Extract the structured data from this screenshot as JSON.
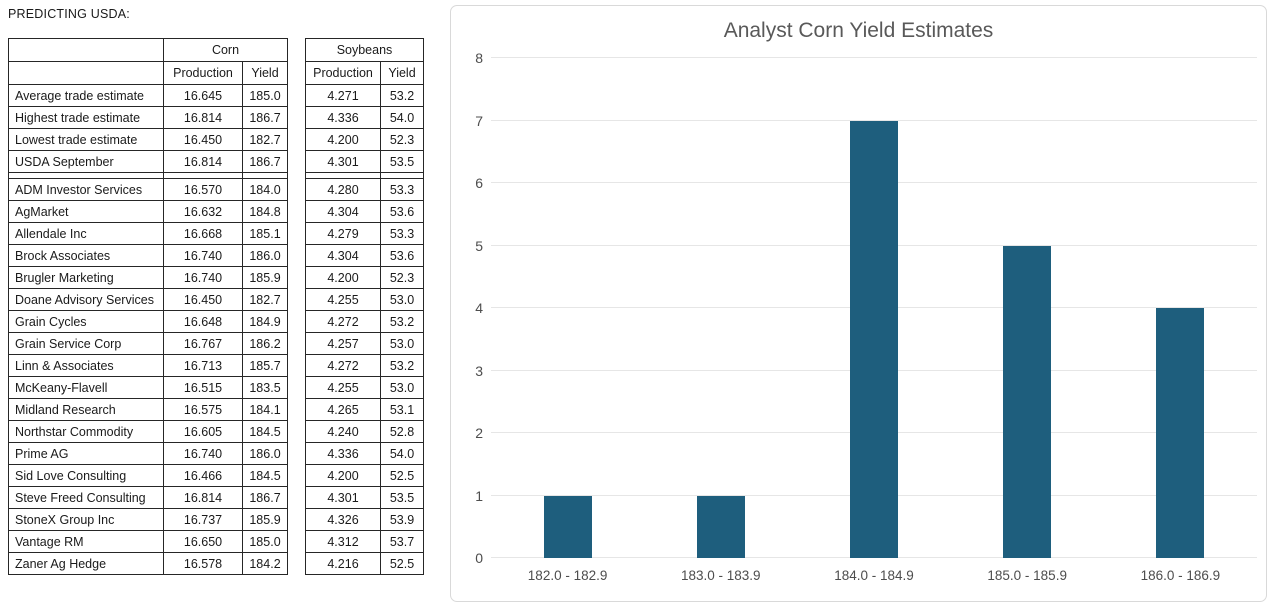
{
  "page_title": "PREDICTING USDA:",
  "table": {
    "group_headers": {
      "corn": "Corn",
      "soybeans": "Soybeans"
    },
    "sub_headers": {
      "production": "Production",
      "yield": "Yield"
    },
    "summary_rows": [
      {
        "name": "Average trade estimate",
        "corn_production": "16.645",
        "corn_yield": "185.0",
        "soy_production": "4.271",
        "soy_yield": "53.2"
      },
      {
        "name": "Highest trade estimate",
        "corn_production": "16.814",
        "corn_yield": "186.7",
        "soy_production": "4.336",
        "soy_yield": "54.0"
      },
      {
        "name": "Lowest trade estimate",
        "corn_production": "16.450",
        "corn_yield": "182.7",
        "soy_production": "4.200",
        "soy_yield": "52.3"
      },
      {
        "name": "USDA September",
        "corn_production": "16.814",
        "corn_yield": "186.7",
        "soy_production": "4.301",
        "soy_yield": "53.5"
      }
    ],
    "analyst_rows": [
      {
        "name": "ADM Investor Services",
        "corn_production": "16.570",
        "corn_yield": "184.0",
        "soy_production": "4.280",
        "soy_yield": "53.3"
      },
      {
        "name": "AgMarket",
        "corn_production": "16.632",
        "corn_yield": "184.8",
        "soy_production": "4.304",
        "soy_yield": "53.6"
      },
      {
        "name": "Allendale Inc",
        "corn_production": "16.668",
        "corn_yield": "185.1",
        "soy_production": "4.279",
        "soy_yield": "53.3"
      },
      {
        "name": "Brock Associates",
        "corn_production": "16.740",
        "corn_yield": "186.0",
        "soy_production": "4.304",
        "soy_yield": "53.6"
      },
      {
        "name": "Brugler Marketing",
        "corn_production": "16.740",
        "corn_yield": "185.9",
        "soy_production": "4.200",
        "soy_yield": "52.3"
      },
      {
        "name": "Doane Advisory Services",
        "corn_production": "16.450",
        "corn_yield": "182.7",
        "soy_production": "4.255",
        "soy_yield": "53.0"
      },
      {
        "name": "Grain Cycles",
        "corn_production": "16.648",
        "corn_yield": "184.9",
        "soy_production": "4.272",
        "soy_yield": "53.2"
      },
      {
        "name": "Grain Service Corp",
        "corn_production": "16.767",
        "corn_yield": "186.2",
        "soy_production": "4.257",
        "soy_yield": "53.0"
      },
      {
        "name": "Linn & Associates",
        "corn_production": "16.713",
        "corn_yield": "185.7",
        "soy_production": "4.272",
        "soy_yield": "53.2"
      },
      {
        "name": "McKeany-Flavell",
        "corn_production": "16.515",
        "corn_yield": "183.5",
        "soy_production": "4.255",
        "soy_yield": "53.0"
      },
      {
        "name": "Midland Research",
        "corn_production": "16.575",
        "corn_yield": "184.1",
        "soy_production": "4.265",
        "soy_yield": "53.1"
      },
      {
        "name": "Northstar Commodity",
        "corn_production": "16.605",
        "corn_yield": "184.5",
        "soy_production": "4.240",
        "soy_yield": "52.8"
      },
      {
        "name": "Prime AG",
        "corn_production": "16.740",
        "corn_yield": "186.0",
        "soy_production": "4.336",
        "soy_yield": "54.0"
      },
      {
        "name": "Sid Love Consulting",
        "corn_production": "16.466",
        "corn_yield": "184.5",
        "soy_production": "4.200",
        "soy_yield": "52.5"
      },
      {
        "name": "Steve Freed Consulting",
        "corn_production": "16.814",
        "corn_yield": "186.7",
        "soy_production": "4.301",
        "soy_yield": "53.5"
      },
      {
        "name": "StoneX Group Inc",
        "corn_production": "16.737",
        "corn_yield": "185.9",
        "soy_production": "4.326",
        "soy_yield": "53.9"
      },
      {
        "name": "Vantage RM",
        "corn_production": "16.650",
        "corn_yield": "185.0",
        "soy_production": "4.312",
        "soy_yield": "53.7"
      },
      {
        "name": "Zaner Ag Hedge",
        "corn_production": "16.578",
        "corn_yield": "184.2",
        "soy_production": "4.216",
        "soy_yield": "52.5"
      }
    ]
  },
  "chart_data": {
    "type": "bar",
    "title": "Analyst Corn Yield Estimates",
    "categories": [
      "182.0 - 182.9",
      "183.0 - 183.9",
      "184.0 - 184.9",
      "185.0 - 185.9",
      "186.0 - 186.9"
    ],
    "values": [
      1,
      1,
      7,
      5,
      4
    ],
    "xlabel": "",
    "ylabel": "",
    "ylim": [
      0,
      8
    ],
    "ytick_step": 1,
    "grid": true,
    "legend_position": "none",
    "bar_color": "#1e5e7d",
    "title_color": "#595959",
    "tick_label_color": "#4d4d4d",
    "gridline_color": "#e6e6e6",
    "card_border_color": "#d9d9d9"
  }
}
